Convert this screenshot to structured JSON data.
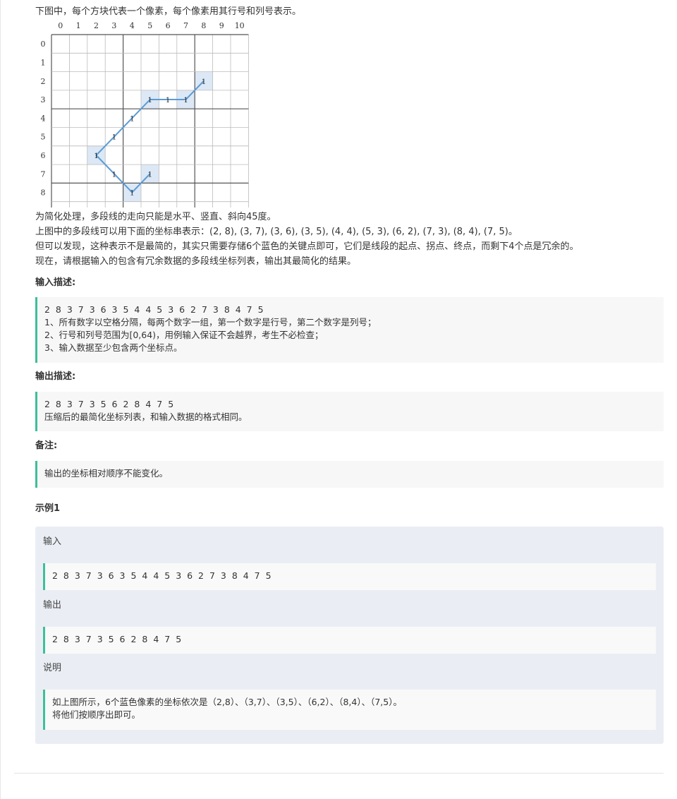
{
  "intro": "下图中，每个方块代表一个像素，每个像素用其行号和列号表示。",
  "grid": {
    "col_labels": [
      "0",
      "1",
      "2",
      "3",
      "4",
      "5",
      "6",
      "7",
      "8",
      "9",
      "10"
    ],
    "row_labels": [
      "0",
      "1",
      "2",
      "3",
      "4",
      "5",
      "6",
      "7",
      "8"
    ],
    "marker": "1",
    "blue_cells": [
      [
        2,
        8
      ],
      [
        3,
        5
      ],
      [
        3,
        7
      ],
      [
        6,
        2
      ],
      [
        7,
        5
      ],
      [
        8,
        4
      ]
    ],
    "polyline_points": [
      [
        2,
        8
      ],
      [
        3,
        7
      ],
      [
        3,
        6
      ],
      [
        3,
        5
      ],
      [
        4,
        4
      ],
      [
        5,
        3
      ],
      [
        6,
        2
      ],
      [
        7,
        3
      ],
      [
        8,
        4
      ],
      [
        7,
        5
      ]
    ],
    "colors": {
      "line": "#5b9bd5",
      "cell_fill": "#dce8f5",
      "grid": "#bbbbbb",
      "grid_bold": "#555555"
    }
  },
  "prose": [
    "为简化处理，多段线的走向只能是水平、竖直、斜向45度。",
    "上图中的多段线可以用下面的坐标串表示：(2, 8), (3, 7), (3, 6), (3, 5), (4, 4), (5, 3), (6, 2), (7, 3), (8, 4), (7, 5)。",
    "但可以发现，这种表示不是最简的，其实只需要存储6个蓝色的关键点即可，它们是线段的起点、拐点、终点，而剩下4个点是冗余的。",
    "现在，请根据输入的包含有冗余数据的多段线坐标列表，输出其最简化的结果。"
  ],
  "input_section": {
    "title": "输入描述:",
    "lines": [
      "2 8 3 7 3 6 3 5 4 4 5 3 6 2 7 3 8 4 7 5",
      "1、所有数字以空格分隔，每两个数字一组，第一个数字是行号，第二个数字是列号；",
      "2、行号和列号范围为[0,64)，用例输入保证不会越界，考生不必检查；",
      "3、输入数据至少包含两个坐标点。"
    ]
  },
  "output_section": {
    "title": "输出描述:",
    "lines": [
      "2 8 3 7 3 5 6 2 8 4 7 5",
      "压缩后的最简化坐标列表，和输入数据的格式相同。"
    ]
  },
  "note_section": {
    "title": "备注:",
    "text": "输出的坐标相对顺序不能变化。"
  },
  "example": {
    "title": "示例1",
    "input_label": "输入",
    "input_value": "2 8 3 7 3 6 3 5 4 4 5 3 6 2 7 3 8 4 7 5",
    "output_label": "输出",
    "output_value": "2 8 3 7 3 5 6 2 8 4 7 5",
    "explain_label": "说明",
    "explain_lines": [
      "如上图所示，6个蓝色像素的坐标依次是（2,8）、（3,7）、（3,5）、（6,2）、（8,4）、（7,5）。",
      "将他们按顺序出即可。"
    ]
  }
}
